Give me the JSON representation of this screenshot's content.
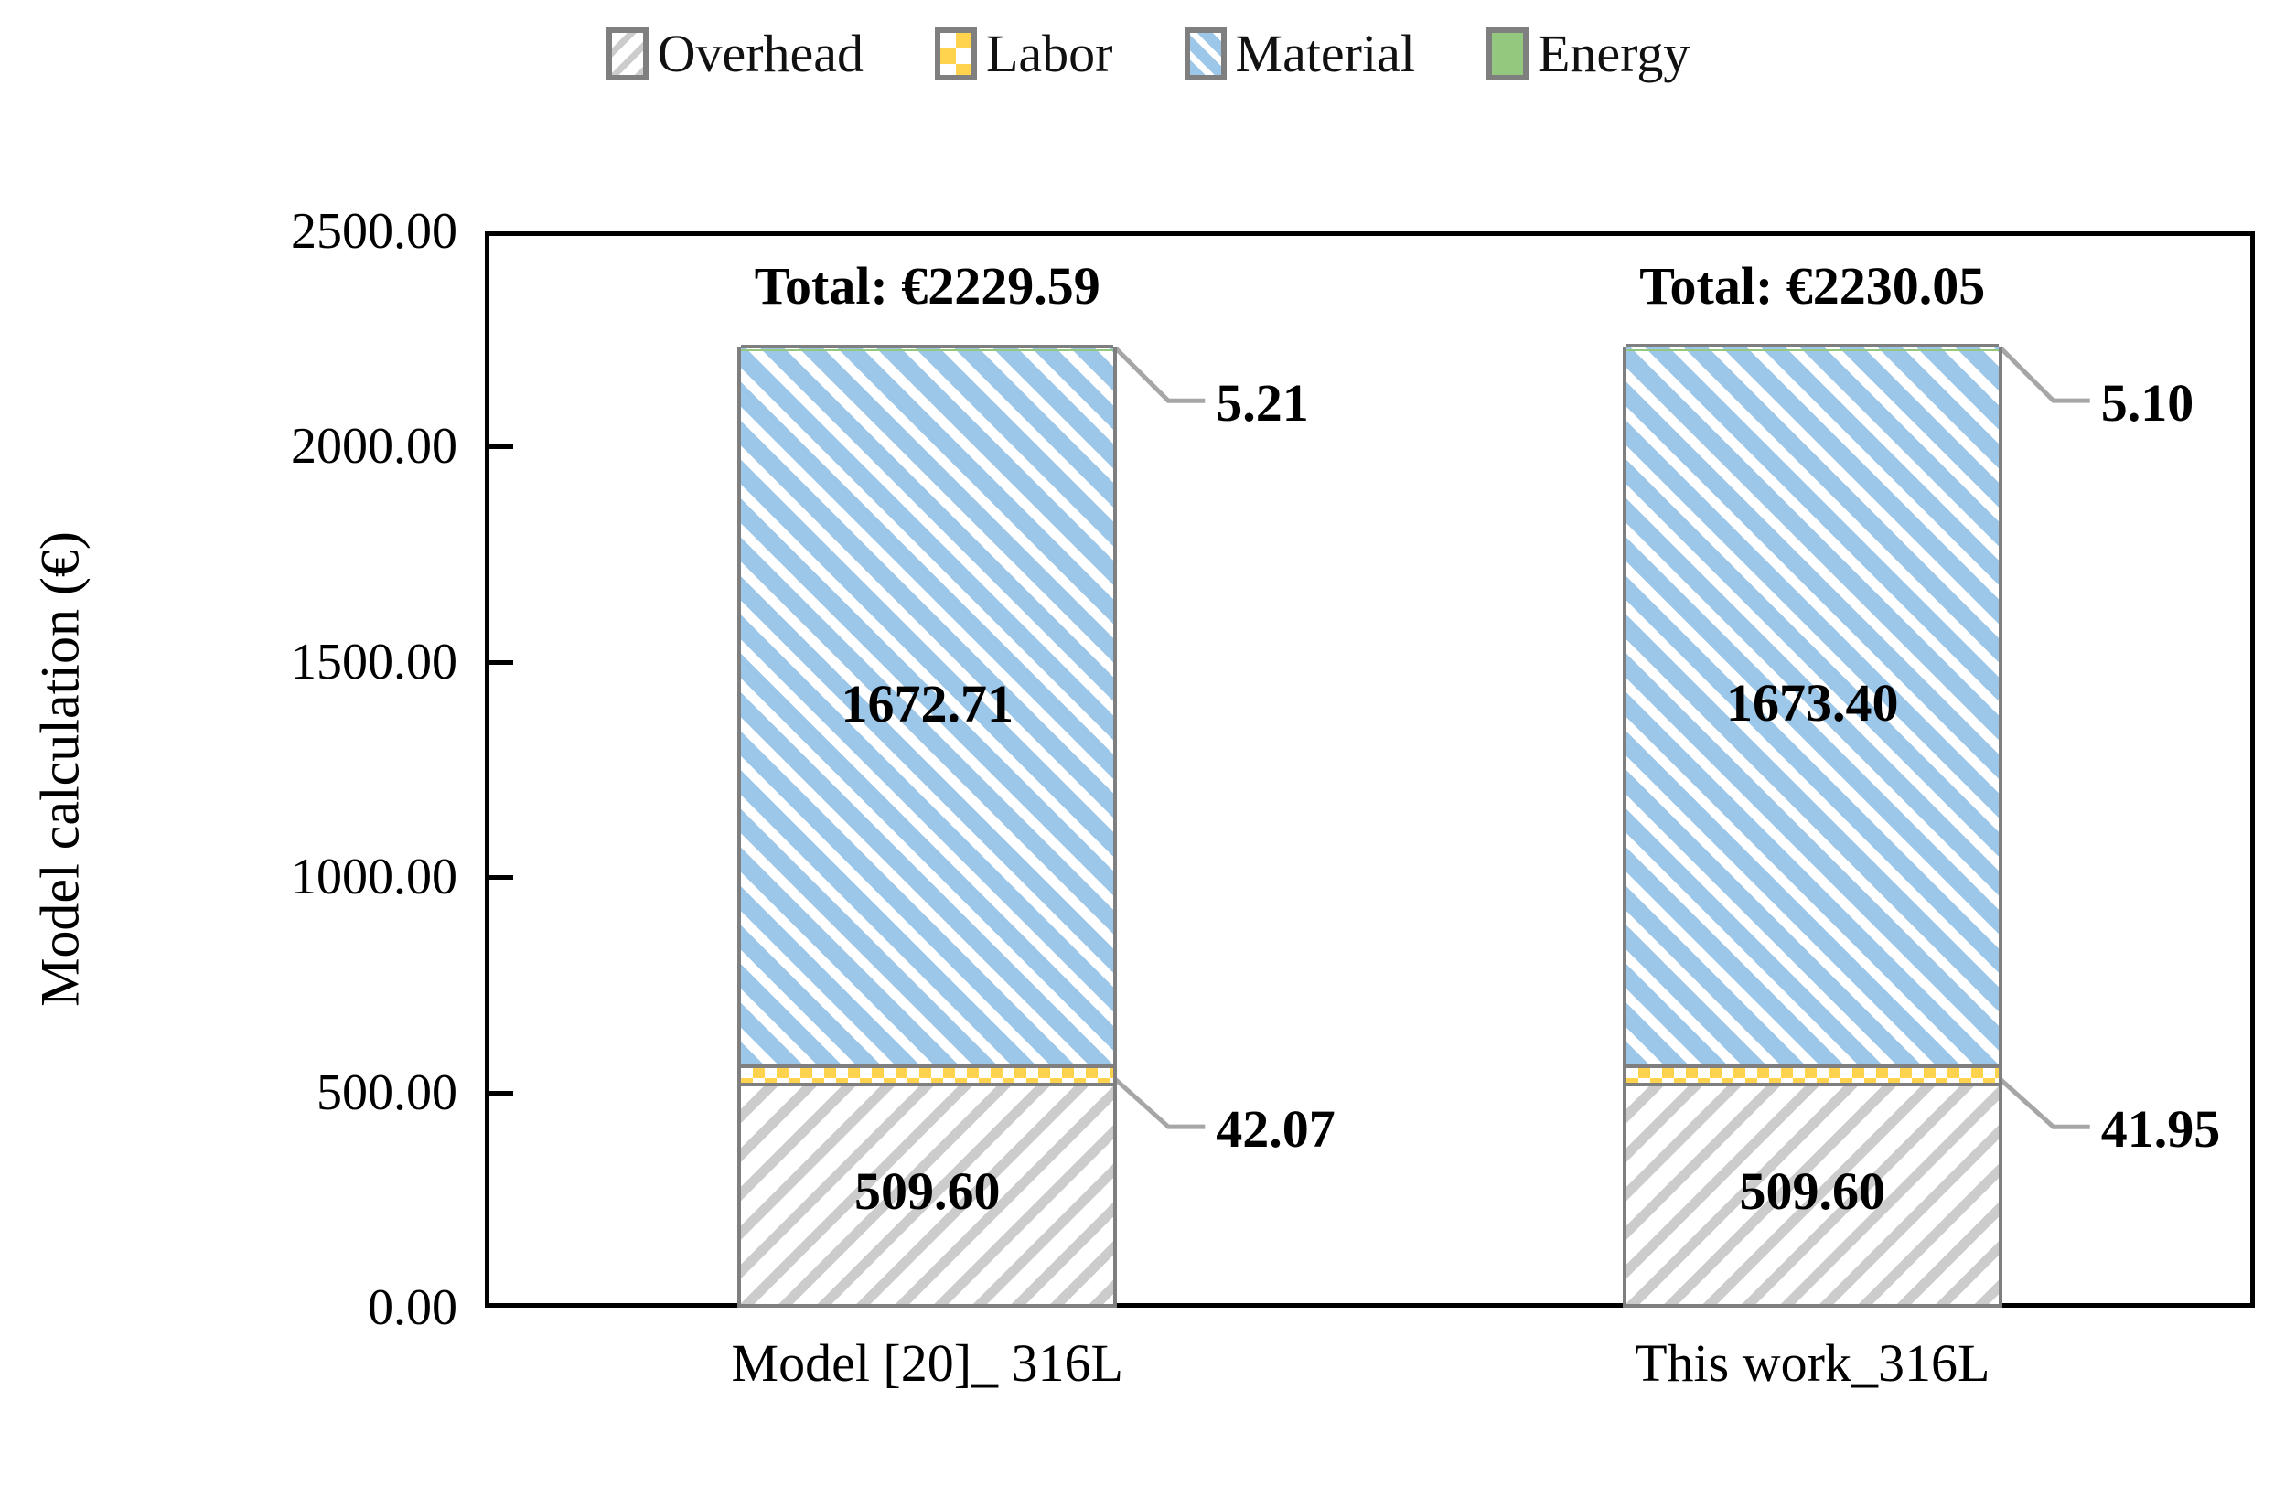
{
  "chart_data": {
    "type": "bar",
    "stacked": true,
    "title": "",
    "xlabel": "",
    "ylabel": "Model calculation (€)",
    "ylim": [
      0,
      2500
    ],
    "ytick_step": 500,
    "yticks": [
      {
        "value": 0,
        "label": "0.00"
      },
      {
        "value": 500,
        "label": "500.00"
      },
      {
        "value": 1000,
        "label": "1000.00"
      },
      {
        "value": 1500,
        "label": "1500.00"
      },
      {
        "value": 2000,
        "label": "2000.00"
      },
      {
        "value": 2500,
        "label": "2500.00"
      }
    ],
    "grid": false,
    "legend_position": "top",
    "categories": [
      "Model [20]_ 316L",
      "This work_316L"
    ],
    "totals": [
      {
        "value": 2229.59,
        "label": "Total: €2229.59"
      },
      {
        "value": 2230.05,
        "label": "Total: €2230.05"
      }
    ],
    "series": [
      {
        "name": "Overhead",
        "pattern": "pat-overhead",
        "label_placement": "inside",
        "values": [
          509.6,
          509.6
        ],
        "labels": [
          "509.60",
          "509.60"
        ]
      },
      {
        "name": "Labor",
        "pattern": "pat-labor",
        "label_placement": "callout",
        "values": [
          42.07,
          41.95
        ],
        "labels": [
          "42.07",
          "41.95"
        ]
      },
      {
        "name": "Material",
        "pattern": "pat-material",
        "label_placement": "inside",
        "values": [
          1672.71,
          1673.4
        ],
        "labels": [
          "1672.71",
          "1673.40"
        ]
      },
      {
        "name": "Energy",
        "pattern": "pat-energy",
        "label_placement": "callout",
        "values": [
          5.21,
          5.1
        ],
        "labels": [
          "5.21",
          "5.10"
        ]
      }
    ],
    "colors": {
      "material_blue": "#9CC7E8",
      "labor_yellow": "#FFD34D",
      "energy_green": "#94C87E",
      "overhead_stripe_gray": "#CCCCCC",
      "segment_border_gray": "#7F7F7F",
      "callout_line_gray": "#A6A6A6",
      "axis_black": "#000000"
    }
  }
}
